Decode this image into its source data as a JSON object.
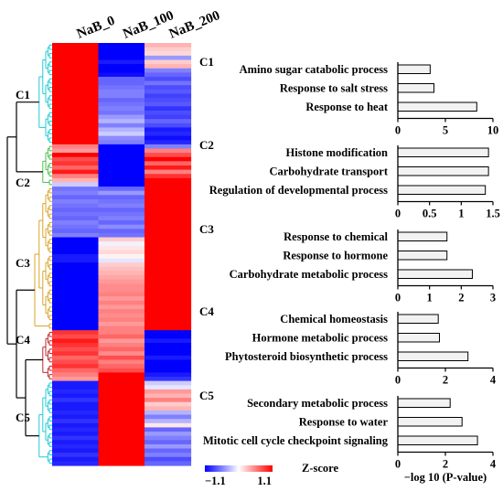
{
  "heatmap": {
    "columns": [
      "NaB_0",
      "NaB_100",
      "NaB_200"
    ],
    "clusters": [
      {
        "label": "C1",
        "color": "#1ecbd6"
      },
      {
        "label": "C2",
        "color": "#4cbf4c"
      },
      {
        "label": "C3",
        "color": "#d9a429"
      },
      {
        "label": "C4",
        "color": "#c0262d"
      },
      {
        "label": "C5",
        "color": "#1ecbd6"
      }
    ],
    "legend": {
      "min_label": "−1.1",
      "max_label": "1.1",
      "title": "Z-score",
      "low_color": "#0000ff",
      "mid_color": "#ffffff",
      "high_color": "#ff0000"
    },
    "rows": [
      [
        1,
        -1,
        0.3
      ],
      [
        1,
        -1,
        0.2
      ],
      [
        1,
        -1,
        0.15
      ],
      [
        1,
        -1,
        -0.4
      ],
      [
        1,
        -0.9,
        0.2
      ],
      [
        1,
        -1,
        0.3
      ],
      [
        1,
        -1,
        -0.5
      ],
      [
        1,
        -0.95,
        -0.6
      ],
      [
        1,
        -0.6,
        -0.7
      ],
      [
        1,
        -0.6,
        -0.55
      ],
      [
        1,
        -0.55,
        -0.7
      ],
      [
        1,
        -0.5,
        -0.65
      ],
      [
        1,
        -0.5,
        -0.75
      ],
      [
        1,
        -0.6,
        -0.7
      ],
      [
        1,
        -0.55,
        -0.65
      ],
      [
        1,
        -0.5,
        -0.8
      ],
      [
        1,
        -0.55,
        -0.7
      ],
      [
        1,
        -0.4,
        -0.75
      ],
      [
        1,
        -0.3,
        -0.6
      ],
      [
        1,
        -0.5,
        -0.7
      ],
      [
        1,
        -0.3,
        -0.9
      ],
      [
        1,
        -0.2,
        -0.85
      ],
      [
        1,
        -0.45,
        -0.95
      ],
      [
        1,
        -0.5,
        -0.85
      ],
      [
        0.5,
        -1,
        -0.5
      ],
      [
        0.4,
        -1,
        0.5
      ],
      [
        1,
        -1,
        0.7
      ],
      [
        0.7,
        -1,
        1
      ],
      [
        0.8,
        -1,
        0.6
      ],
      [
        0.6,
        -1,
        0.9
      ],
      [
        0.9,
        -1,
        0.5
      ],
      [
        0.5,
        -1,
        0.8
      ],
      [
        0.3,
        -1,
        1
      ],
      [
        -0.2,
        -1,
        1
      ],
      [
        -0.55,
        -0.6,
        1
      ],
      [
        -0.5,
        -0.4,
        1
      ],
      [
        -0.6,
        -0.6,
        1
      ],
      [
        -0.5,
        -0.55,
        1
      ],
      [
        -0.55,
        -0.5,
        1
      ],
      [
        -0.6,
        -0.6,
        1
      ],
      [
        -0.55,
        -0.55,
        1
      ],
      [
        -0.6,
        -0.5,
        1
      ],
      [
        -0.5,
        -0.6,
        1
      ],
      [
        -0.55,
        -0.45,
        1
      ],
      [
        -0.6,
        -0.6,
        1
      ],
      [
        -0.5,
        -0.55,
        1
      ],
      [
        -1,
        0.2,
        1
      ],
      [
        -1,
        -0.05,
        1
      ],
      [
        -1,
        0.1,
        1
      ],
      [
        -1,
        0.15,
        1
      ],
      [
        -0.9,
        0.05,
        1
      ],
      [
        -0.9,
        -0.1,
        1
      ],
      [
        -1,
        0.2,
        1
      ],
      [
        -1,
        0.25,
        1
      ],
      [
        -1,
        0.3,
        1
      ],
      [
        -1,
        0.35,
        1
      ],
      [
        -1,
        0.4,
        1
      ],
      [
        -1,
        0.45,
        1
      ],
      [
        -1,
        0.45,
        1
      ],
      [
        -1,
        0.5,
        1
      ],
      [
        -1,
        0.4,
        1
      ],
      [
        -1,
        0.5,
        1
      ],
      [
        -1,
        0.4,
        1
      ],
      [
        -1,
        0.5,
        1
      ],
      [
        -1,
        0.45,
        1
      ],
      [
        -1,
        0.5,
        1
      ],
      [
        -1,
        0.4,
        1
      ],
      [
        -1,
        0.5,
        1
      ],
      [
        0.8,
        0.5,
        -1
      ],
      [
        0.7,
        0.6,
        -1
      ],
      [
        0.9,
        0.4,
        -0.9
      ],
      [
        0.8,
        0.5,
        -1
      ],
      [
        0.7,
        0.6,
        -1
      ],
      [
        0.8,
        0.45,
        -1
      ],
      [
        0.6,
        0.7,
        -0.9
      ],
      [
        0.7,
        0.5,
        -1
      ],
      [
        0.8,
        0.6,
        -1
      ],
      [
        0.6,
        0.7,
        -1
      ],
      [
        0.5,
        1,
        -0.9
      ],
      [
        0.4,
        1,
        -0.8
      ],
      [
        -0.9,
        1,
        -0.2
      ],
      [
        -0.9,
        1,
        -0.1
      ],
      [
        -0.85,
        1,
        0.4
      ],
      [
        -0.9,
        1,
        0.3
      ],
      [
        -0.8,
        1,
        0.5
      ],
      [
        -0.9,
        1,
        0.2
      ],
      [
        -0.9,
        1,
        0.3
      ],
      [
        -0.85,
        1,
        -0.3
      ],
      [
        -0.9,
        1,
        -0.5
      ],
      [
        -0.8,
        1,
        -0.3
      ],
      [
        -0.9,
        1,
        0.1
      ],
      [
        -0.85,
        1,
        -0.6
      ],
      [
        -0.9,
        1,
        -0.4
      ],
      [
        -0.8,
        1,
        -0.5
      ],
      [
        -0.9,
        1,
        -0.6
      ],
      [
        -0.85,
        1,
        -0.4
      ],
      [
        -0.9,
        1,
        -0.6
      ],
      [
        -0.8,
        1,
        -0.5
      ],
      [
        -0.9,
        1,
        -0.7
      ],
      [
        -0.85,
        1,
        -0.6
      ]
    ]
  },
  "chart_data": [
    {
      "type": "bar",
      "cluster": "C1",
      "categories": [
        "Amino sugar catabolic process",
        "Response to salt stress",
        "Response to heat"
      ],
      "values": [
        3.4,
        3.8,
        8.3
      ],
      "xlim": [
        0,
        10
      ],
      "ticks": [
        "0",
        "5",
        "10"
      ],
      "xlabel": ""
    },
    {
      "type": "bar",
      "cluster": "C2",
      "categories": [
        "Histone modification",
        "Carbohydrate transport",
        "Regulation of developmental process"
      ],
      "values": [
        1.43,
        1.43,
        1.38
      ],
      "xlim": [
        0,
        1.5
      ],
      "ticks": [
        "0",
        "0.5",
        "1",
        "1.5"
      ],
      "xlabel": ""
    },
    {
      "type": "bar",
      "cluster": "C3",
      "categories": [
        "Response to chemical",
        "Response to hormone",
        "Carbohydrate metabolic process"
      ],
      "values": [
        1.55,
        1.55,
        2.35
      ],
      "xlim": [
        0,
        3
      ],
      "ticks": [
        "0",
        "1",
        "2",
        "3"
      ],
      "xlabel": ""
    },
    {
      "type": "bar",
      "cluster": "C4",
      "categories": [
        "Chemical homeostasis",
        "Hormone metabolic process",
        "Phytosteroid biosynthetic process"
      ],
      "values": [
        1.7,
        1.75,
        2.95
      ],
      "xlim": [
        0,
        4
      ],
      "ticks": [
        "0",
        "2",
        "4"
      ],
      "xlabel": ""
    },
    {
      "type": "bar",
      "cluster": "C5",
      "categories": [
        "Secondary metabolic process",
        "Response to water",
        "Mitotic cell cycle checkpoint signaling"
      ],
      "values": [
        2.2,
        2.7,
        3.35
      ],
      "xlim": [
        0,
        4
      ],
      "ticks": [
        "0",
        "2",
        "4"
      ],
      "xlabel": "−log 10 (P-value)"
    }
  ]
}
